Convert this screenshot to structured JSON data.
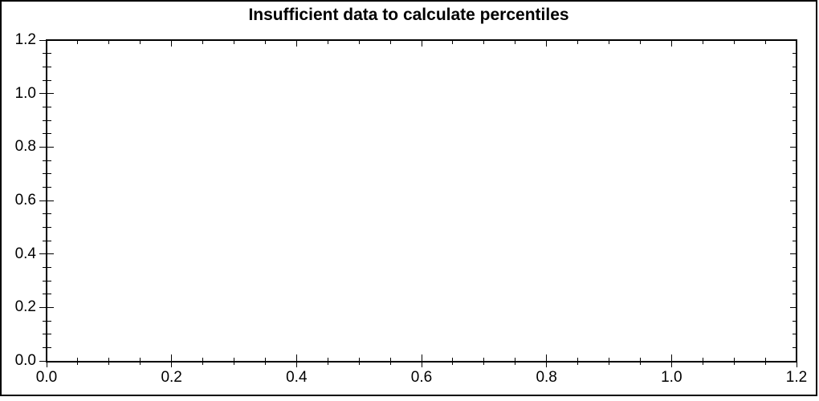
{
  "title": "Insufficient data to calculate percentiles",
  "chart_data": {
    "type": "scatter",
    "title": "Insufficient data to calculate percentiles",
    "series": [],
    "points": [],
    "xlabel": "",
    "ylabel": "",
    "xlim": [
      0,
      1.2
    ],
    "ylim": [
      0,
      1.2
    ],
    "x_major_step": 0.2,
    "x_minor_step": 0.05,
    "y_major_step": 0.2,
    "y_minor_step": 0.05,
    "x_tick_labels": [
      "0.0",
      "0.2",
      "0.4",
      "0.6",
      "0.8",
      "1.0",
      "1.2"
    ],
    "y_tick_labels": [
      "0.0",
      "0.2",
      "0.4",
      "0.6",
      "0.8",
      "1.0",
      "1.2"
    ],
    "grid": false,
    "legend": "none",
    "plot_bg": "#ffffff",
    "axis_color": "#000000",
    "text_color": "#000000"
  }
}
